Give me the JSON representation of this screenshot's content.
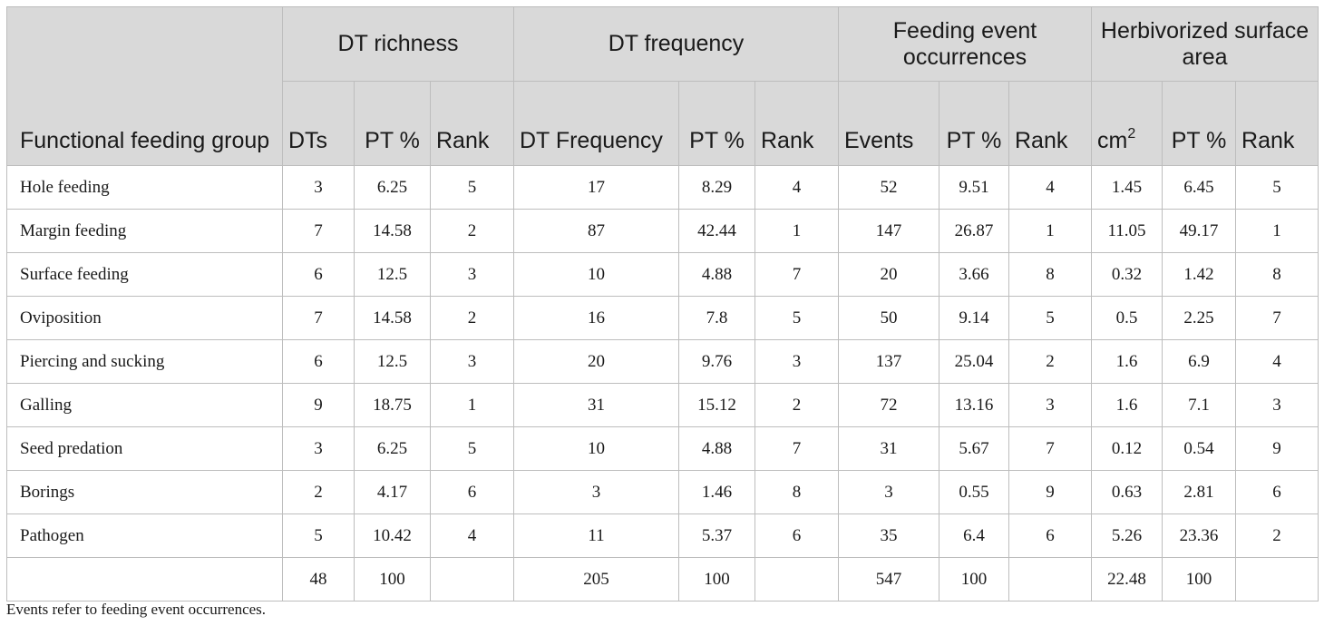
{
  "headers": {
    "functional_group": "Functional feeding group",
    "groups": {
      "richness": "DT richness",
      "frequency": "DT frequency",
      "events": "Feeding event occurrences",
      "area": "Herbivorized surface area"
    },
    "sub": {
      "dts": "DTs",
      "pt": "PT %",
      "rank": "Rank",
      "dt_frequency": "DT Frequency",
      "events": "Events",
      "cm": "cm",
      "cm_sup": "2"
    }
  },
  "rows": [
    {
      "name": "Hole feeding",
      "cells": [
        "3",
        "6.25",
        "5",
        "17",
        "8.29",
        "4",
        "52",
        "9.51",
        "4",
        "1.45",
        "6.45",
        "5"
      ]
    },
    {
      "name": "Margin feeding",
      "cells": [
        "7",
        "14.58",
        "2",
        "87",
        "42.44",
        "1",
        "147",
        "26.87",
        "1",
        "11.05",
        "49.17",
        "1"
      ]
    },
    {
      "name": "Surface feeding",
      "cells": [
        "6",
        "12.5",
        "3",
        "10",
        "4.88",
        "7",
        "20",
        "3.66",
        "8",
        "0.32",
        "1.42",
        "8"
      ]
    },
    {
      "name": "Oviposition",
      "cells": [
        "7",
        "14.58",
        "2",
        "16",
        "7.8",
        "5",
        "50",
        "9.14",
        "5",
        "0.5",
        "2.25",
        "7"
      ]
    },
    {
      "name": "Piercing and sucking",
      "cells": [
        "6",
        "12.5",
        "3",
        "20",
        "9.76",
        "3",
        "137",
        "25.04",
        "2",
        "1.6",
        "6.9",
        "4"
      ]
    },
    {
      "name": "Galling",
      "cells": [
        "9",
        "18.75",
        "1",
        "31",
        "15.12",
        "2",
        "72",
        "13.16",
        "3",
        "1.6",
        "7.1",
        "3"
      ]
    },
    {
      "name": "Seed predation",
      "cells": [
        "3",
        "6.25",
        "5",
        "10",
        "4.88",
        "7",
        "31",
        "5.67",
        "7",
        "0.12",
        "0.54",
        "9"
      ]
    },
    {
      "name": "Borings",
      "cells": [
        "2",
        "4.17",
        "6",
        "3",
        "1.46",
        "8",
        "3",
        "0.55",
        "9",
        "0.63",
        "2.81",
        "6"
      ]
    },
    {
      "name": "Pathogen",
      "cells": [
        "5",
        "10.42",
        "4",
        "11",
        "5.37",
        "6",
        "35",
        "6.4",
        "6",
        "5.26",
        "23.36",
        "2"
      ]
    },
    {
      "name": "",
      "cells": [
        "48",
        "100",
        "",
        "205",
        "100",
        "",
        "547",
        "100",
        "",
        "22.48",
        "100",
        ""
      ]
    }
  ],
  "note": "Events refer to feeding event occurrences."
}
